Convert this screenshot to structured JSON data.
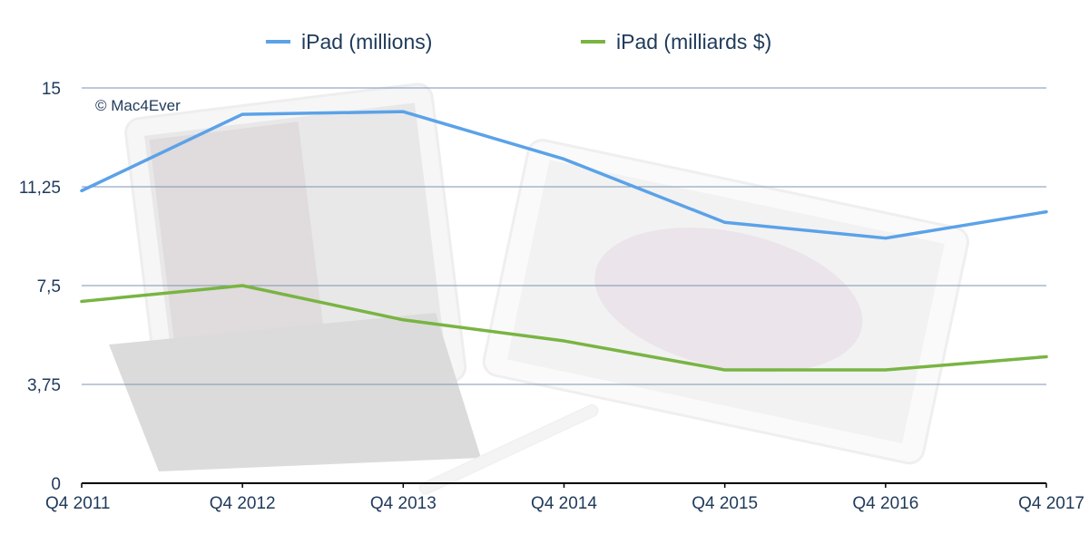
{
  "credit": "© Mac4Ever",
  "colors": {
    "series_1": "#5ba2e8",
    "series_2": "#79b443",
    "grid": "#7b95b3",
    "axis": "#000000",
    "text": "#1f3a5a"
  },
  "chart_data": {
    "type": "line",
    "categories": [
      "Q4 2011",
      "Q4 2012",
      "Q4 2013",
      "Q4 2014",
      "Q4 2015",
      "Q4 2016",
      "Q4 2017"
    ],
    "series": [
      {
        "name": "iPad (millions)",
        "values": [
          11.1,
          14.0,
          14.1,
          12.3,
          9.9,
          9.3,
          10.3
        ]
      },
      {
        "name": "iPad (milliards $)",
        "values": [
          6.9,
          7.5,
          6.2,
          5.4,
          4.3,
          4.3,
          4.8
        ]
      }
    ],
    "yticks": [
      "0",
      "3,75",
      "7,5",
      "11,25",
      "15"
    ],
    "ylim": [
      0,
      15
    ],
    "grid": true,
    "legend_position": "top"
  }
}
